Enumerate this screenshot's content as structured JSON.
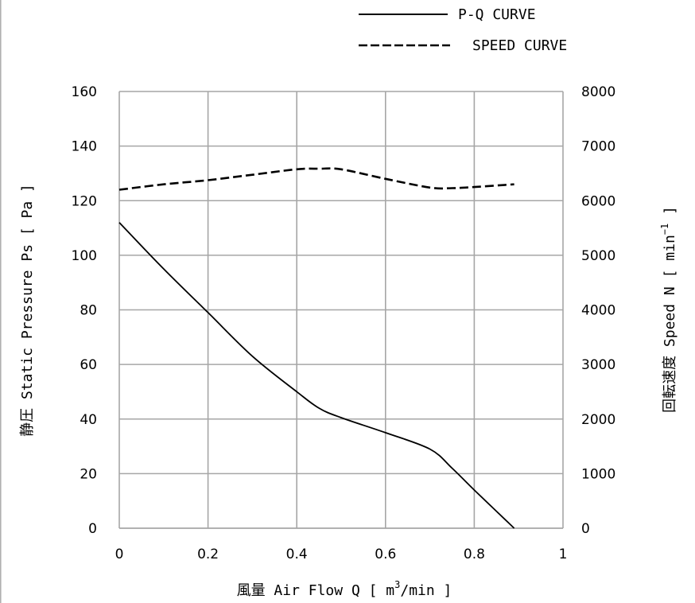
{
  "chart_data": {
    "type": "line",
    "legend": {
      "position": "top-right",
      "entries": [
        {
          "label": "P-Q CURVE",
          "style": "solid"
        },
        {
          "label": "SPEED CURVE",
          "style": "dashed"
        }
      ]
    },
    "xlabel": {
      "prefix": "風量 Air Flow Q [ m",
      "sup": "3",
      "suffix": "/min ]"
    },
    "ylabel_left": "静圧 Static Pressure Ps [ Pa ]",
    "ylabel_right": {
      "prefix": "回転速度 Speed N [ min",
      "sup": "−1",
      "suffix": " ]"
    },
    "xlim": [
      0,
      1
    ],
    "ylim_left": [
      0,
      160
    ],
    "ylim_right": [
      0,
      8000
    ],
    "x_ticks": [
      "0",
      "0.2",
      "0.4",
      "0.6",
      "0.8",
      "1"
    ],
    "x_tick_values": [
      0,
      0.2,
      0.4,
      0.6,
      0.8,
      1.0
    ],
    "y_left_ticks": [
      "0",
      "20",
      "40",
      "60",
      "80",
      "100",
      "120",
      "140",
      "160"
    ],
    "y_left_tick_values": [
      0,
      20,
      40,
      60,
      80,
      100,
      120,
      140,
      160
    ],
    "y_right_ticks": [
      "0",
      "1000",
      "2000",
      "3000",
      "4000",
      "5000",
      "6000",
      "7000",
      "8000"
    ],
    "grid": true,
    "series": [
      {
        "name": "P-Q CURVE",
        "axis": "left",
        "style": "solid",
        "x": [
          0,
          0.1,
          0.2,
          0.3,
          0.4,
          0.45,
          0.5,
          0.6,
          0.7,
          0.75,
          0.8,
          0.89
        ],
        "y": [
          112,
          95,
          79,
          63,
          50,
          44,
          40.5,
          35,
          29,
          22,
          14,
          0
        ]
      },
      {
        "name": "SPEED CURVE",
        "axis": "right",
        "style": "dashed",
        "x": [
          0,
          0.1,
          0.2,
          0.3,
          0.4,
          0.45,
          0.5,
          0.6,
          0.7,
          0.75,
          0.8,
          0.89
        ],
        "y": [
          6200,
          6300,
          6375,
          6475,
          6575,
          6585,
          6575,
          6400,
          6240,
          6230,
          6250,
          6300
        ]
      }
    ]
  },
  "colors": {
    "line": "#000000",
    "grid": "#a6a6a6"
  }
}
